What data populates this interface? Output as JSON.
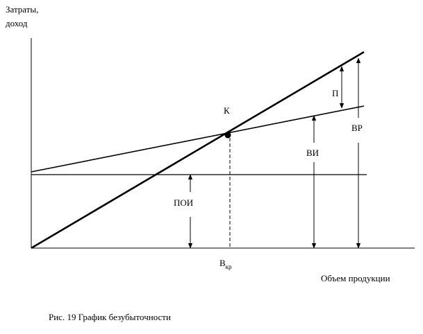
{
  "axis_labels": {
    "y_line1": "Затраты,",
    "y_line2": "доход",
    "x": "Объем продукции"
  },
  "labels": {
    "point": "К",
    "profit": "П",
    "revenue": "ВР",
    "variable_costs": "ВИ",
    "fixed_costs": "ПОИ",
    "breakeven": "В",
    "breakeven_sub": "кр"
  },
  "caption": "Рис. 19 График безубыточности"
}
